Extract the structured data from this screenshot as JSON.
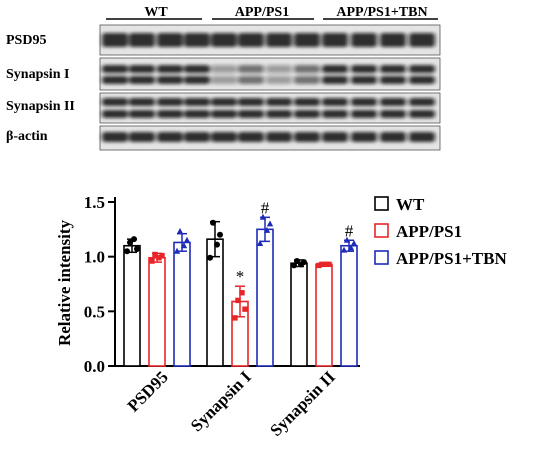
{
  "blot": {
    "groups": [
      "WT",
      "APP/PS1",
      "APP/PS1+TBN"
    ],
    "rows": [
      "PSD95",
      "Synapsin I",
      "Synapsin II",
      "β-actin"
    ]
  },
  "chart_data": {
    "type": "bar",
    "categories": [
      "PSD95",
      "Synapsin I",
      "Synapsin II"
    ],
    "ylabel": "Relative intensity",
    "ylim": [
      0,
      1.5
    ],
    "yticks": [
      "0.0",
      "0.5",
      "1.0",
      "1.5"
    ],
    "legend": "right",
    "series": [
      {
        "name": "WT",
        "color": "#000000",
        "values": [
          1.1,
          1.16,
          0.94
        ],
        "err": [
          0.06,
          0.16,
          0.03
        ],
        "points": [
          [
            1.05,
            1.13,
            1.16,
            1.07
          ],
          [
            0.99,
            1.31,
            1.11,
            1.2
          ],
          [
            0.92,
            0.96,
            0.93,
            0.95
          ]
        ]
      },
      {
        "name": "APP/PS1",
        "color": "#e8262a",
        "values": [
          0.99,
          0.59,
          0.93
        ],
        "err": [
          0.04,
          0.14,
          0.01
        ],
        "points": [
          [
            0.96,
            1.02,
            0.99,
            1.01
          ],
          [
            0.44,
            0.6,
            0.67,
            0.52
          ],
          [
            0.92,
            0.93,
            0.93,
            0.93
          ]
        ]
      },
      {
        "name": "APP/PS1+TBN",
        "color": "#1e2bb8",
        "values": [
          1.13,
          1.25,
          1.1
        ],
        "err": [
          0.08,
          0.11,
          0.05
        ],
        "points": [
          [
            1.05,
            1.23,
            1.1,
            1.15
          ],
          [
            1.12,
            1.36,
            1.24,
            1.3
          ],
          [
            1.06,
            1.15,
            1.08,
            1.12
          ]
        ]
      }
    ],
    "annotations": [
      {
        "text": "*",
        "category": 1,
        "series": 1
      },
      {
        "text": "#",
        "category": 1,
        "series": 2
      },
      {
        "text": "#",
        "category": 2,
        "series": 2
      }
    ]
  }
}
